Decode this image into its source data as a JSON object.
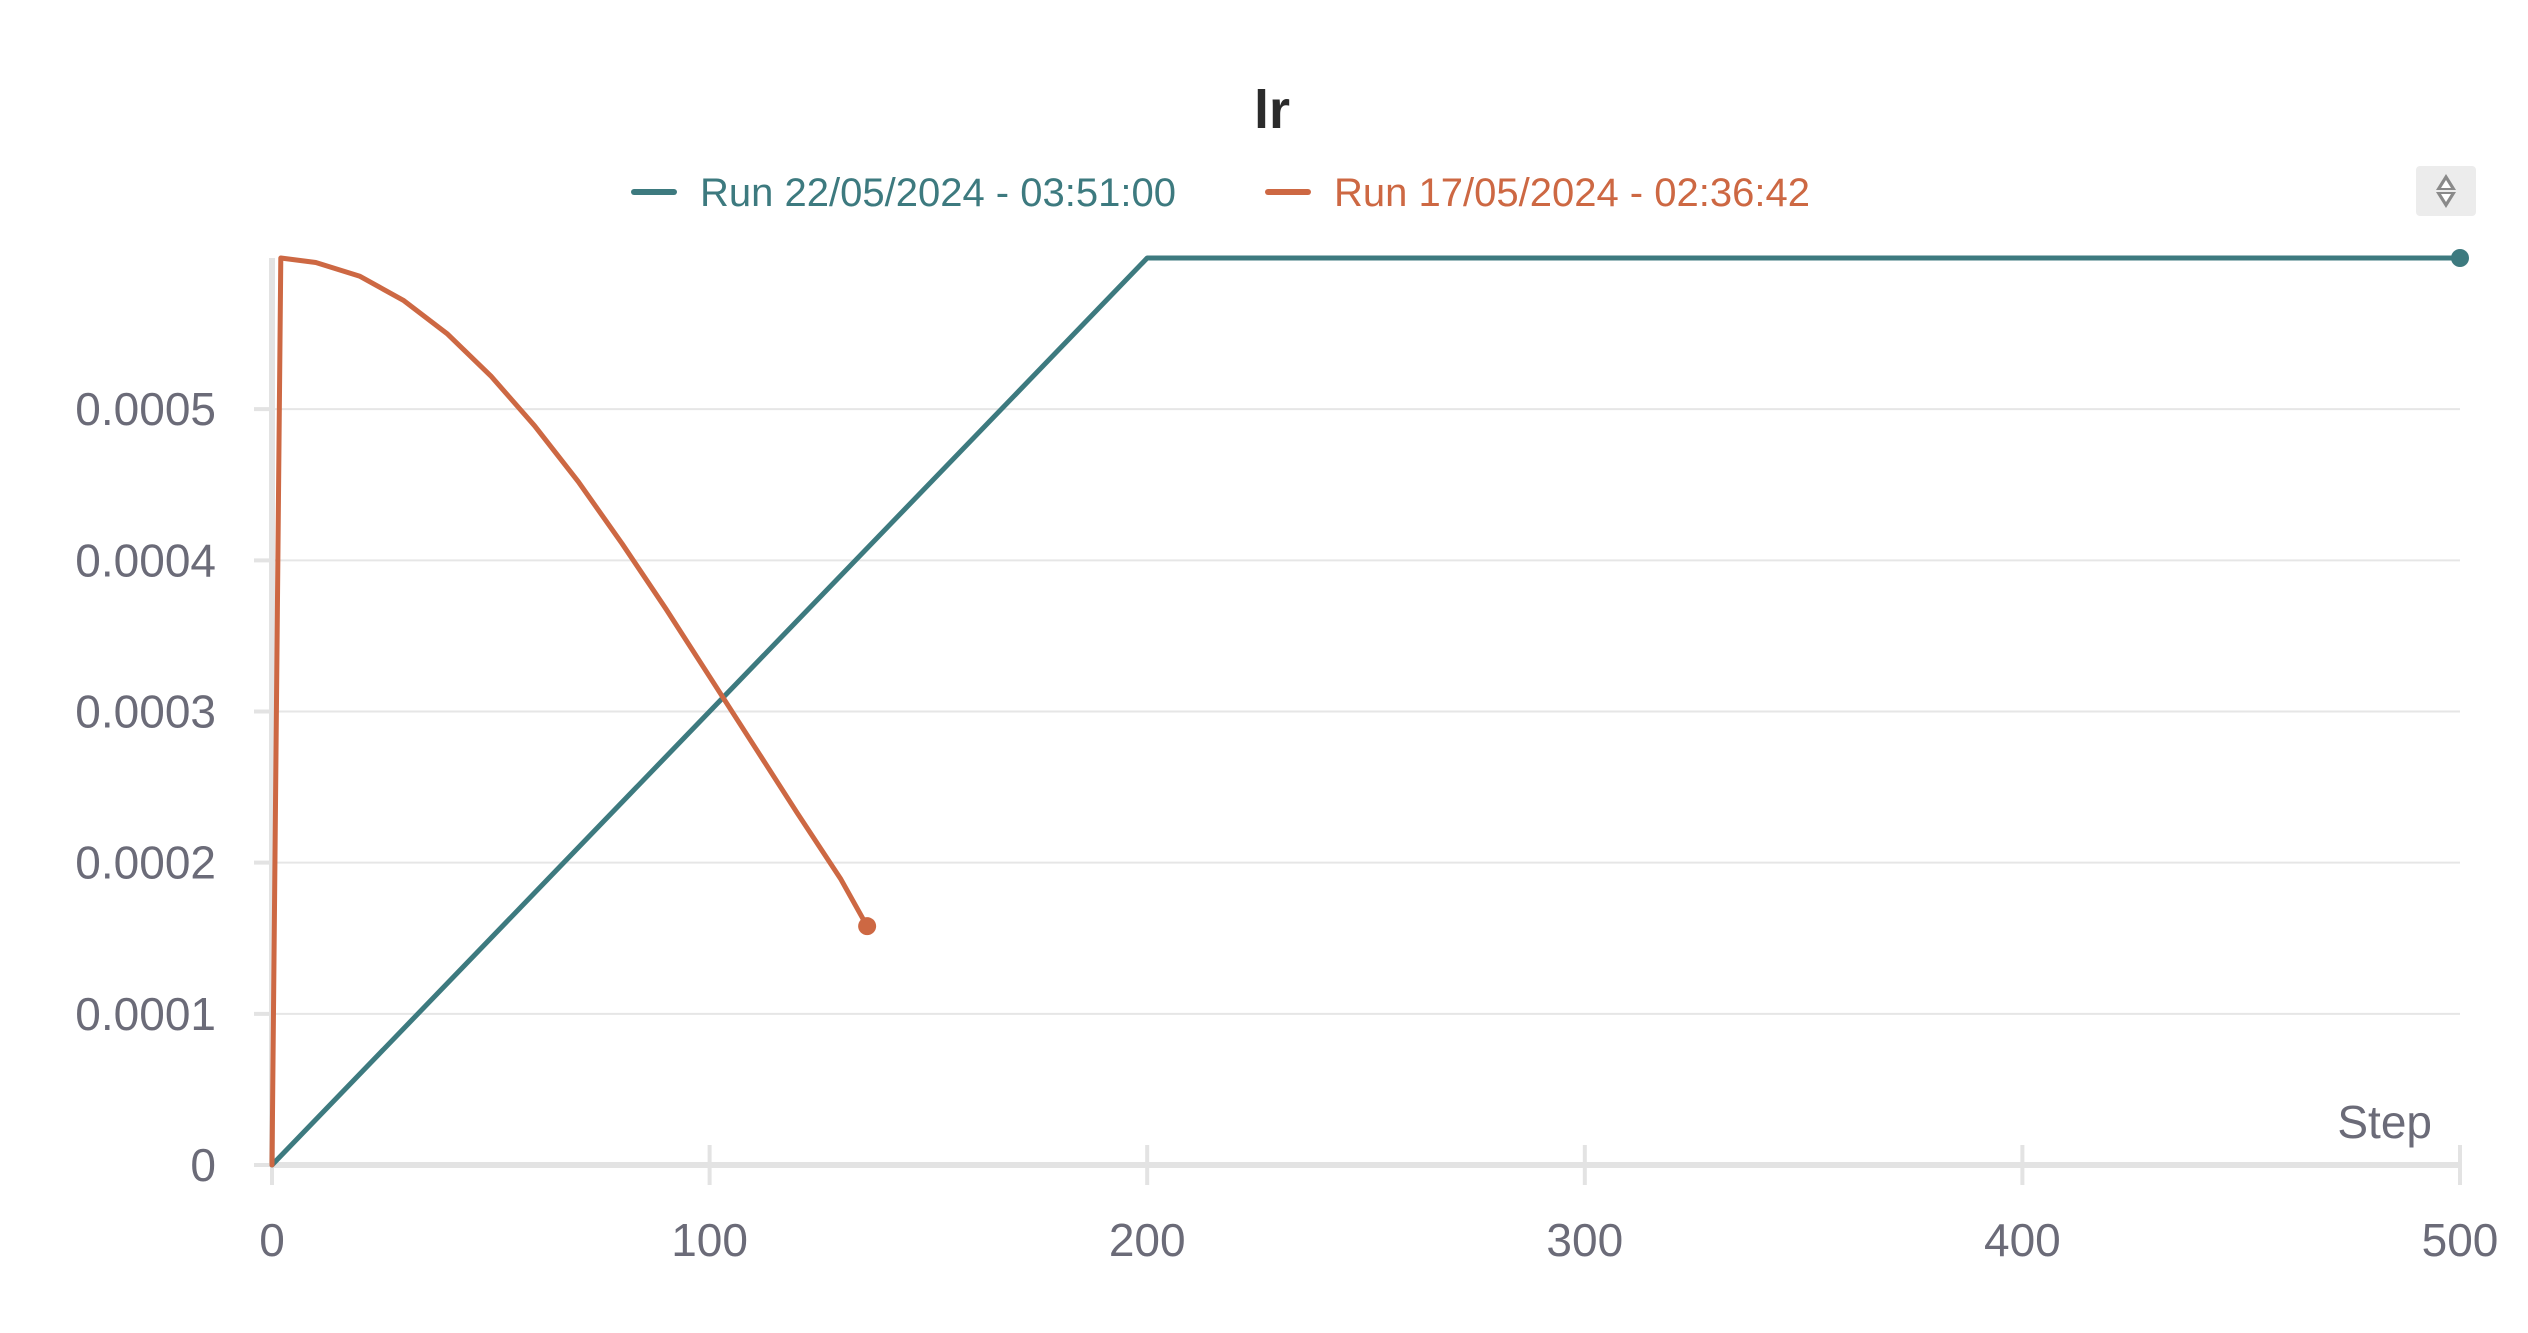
{
  "chart_data": {
    "type": "line",
    "title": "lr",
    "xlabel": "Step",
    "ylabel": "",
    "xlim": [
      0,
      500
    ],
    "ylim": [
      0,
      0.0006
    ],
    "x_ticks": [
      "0",
      "100",
      "200",
      "300",
      "400",
      "500"
    ],
    "y_ticks": [
      "0",
      "0.0001",
      "0.0002",
      "0.0003",
      "0.0004",
      "0.0005"
    ],
    "grid": true,
    "legend_position": "top-center",
    "series": [
      {
        "name": "Run 22/05/2024 - 03:51:00",
        "color": "#3d7a7f",
        "x": [
          0,
          200,
          500
        ],
        "y": [
          0,
          0.0006,
          0.0006
        ]
      },
      {
        "name": "Run 17/05/2024 - 02:36:42",
        "color": "#cd6843",
        "x": [
          0,
          2,
          10,
          20,
          30,
          40,
          50,
          60,
          70,
          80,
          90,
          100,
          110,
          120,
          130,
          136
        ],
        "y": [
          0,
          0.0006,
          0.000597,
          0.000588,
          0.000572,
          0.00055,
          0.000522,
          0.000489,
          0.000452,
          0.000411,
          0.000368,
          0.000323,
          0.000278,
          0.000233,
          0.000189,
          0.000158
        ]
      }
    ]
  },
  "icons": {
    "menu": "collapse-arrows-icon"
  }
}
